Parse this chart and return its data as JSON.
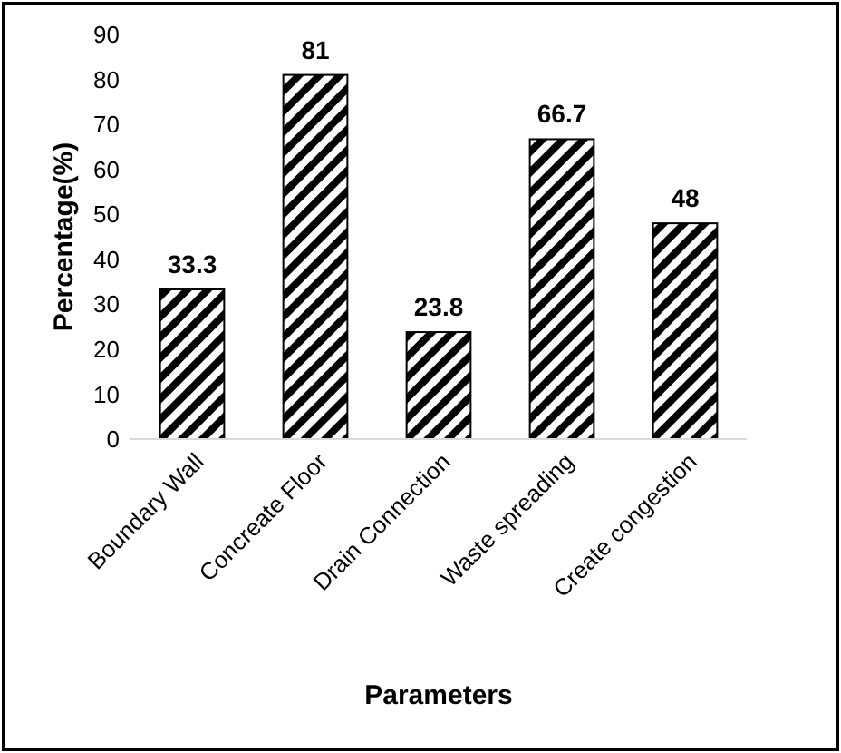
{
  "chart_data": {
    "type": "bar",
    "categories": [
      "Boundary Wall",
      "Concreate Floor",
      "Drain Connection",
      "Waste spreading",
      "Create congestion"
    ],
    "values": [
      33.3,
      81,
      23.8,
      66.7,
      48
    ],
    "color": "#000000",
    "xlabel": "Parameters",
    "ylabel": "Percentage(%)",
    "ylim": [
      0,
      90
    ],
    "yticks": [
      0,
      10,
      20,
      30,
      40,
      50,
      60,
      70,
      80,
      90
    ],
    "data_labels": true,
    "grid": false
  }
}
